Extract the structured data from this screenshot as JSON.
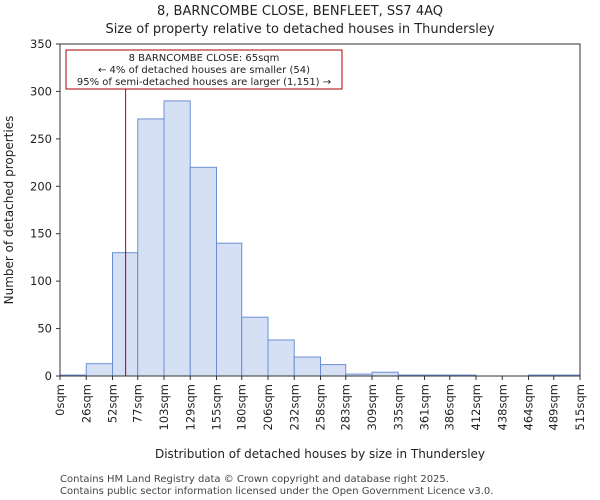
{
  "chart_data": {
    "type": "bar",
    "title_line1": "8, BARNCOMBE CLOSE, BENFLEET, SS7 4AQ",
    "title_line2": "Size of property relative to detached houses in Thundersley",
    "xlabel": "Distribution of detached houses by size in Thundersley",
    "ylabel": "Number of detached properties",
    "ylim": [
      0,
      350
    ],
    "yticks": [
      0,
      50,
      100,
      150,
      200,
      250,
      300,
      350
    ],
    "bin_edges": [
      0,
      26,
      52,
      77,
      103,
      129,
      155,
      180,
      206,
      232,
      258,
      283,
      309,
      335,
      361,
      386,
      412,
      438,
      464,
      489,
      515
    ],
    "x_tick_labels": [
      "0sqm",
      "26sqm",
      "52sqm",
      "77sqm",
      "103sqm",
      "129sqm",
      "155sqm",
      "180sqm",
      "206sqm",
      "232sqm",
      "258sqm",
      "283sqm",
      "309sqm",
      "335sqm",
      "361sqm",
      "386sqm",
      "412sqm",
      "438sqm",
      "464sqm",
      "489sqm",
      "515sqm"
    ],
    "values": [
      1,
      13,
      130,
      271,
      290,
      220,
      140,
      62,
      38,
      20,
      12,
      2,
      4,
      1,
      1,
      1,
      0,
      0,
      1,
      1
    ],
    "property_line": {
      "value": 65
    },
    "annotation": {
      "line1": "8 BARNCOMBE CLOSE: 65sqm",
      "line2": "← 4% of detached houses are smaller (54)",
      "line3": "95% of semi-detached houses are larger (1,151) →"
    },
    "bar_fill": "#d6e0f5",
    "bar_edge": "#6b8fd4",
    "line_color": "#aa0000"
  },
  "footer": {
    "line1": "Contains HM Land Registry data © Crown copyright and database right 2025.",
    "line2": "Contains public sector information licensed under the Open Government Licence v3.0."
  }
}
